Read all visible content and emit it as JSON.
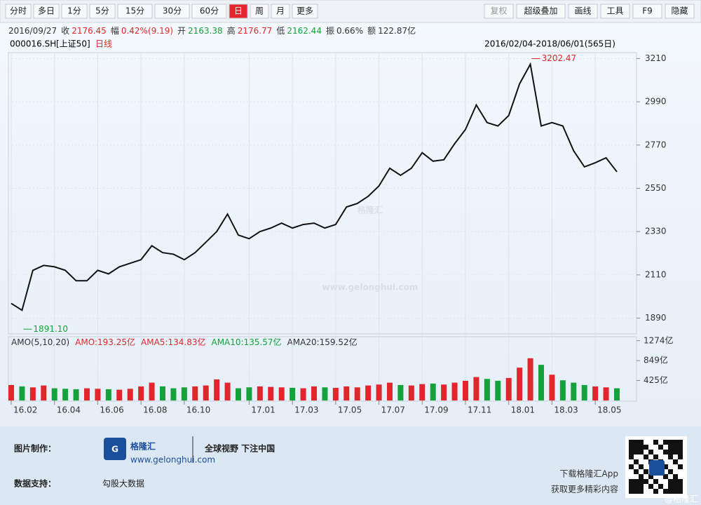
{
  "toolbar": {
    "left": [
      "分时",
      "多日",
      "1分",
      "5分",
      "15分",
      "30分",
      "60分",
      "日",
      "周",
      "月",
      "更多"
    ],
    "selected": 7,
    "right": [
      "复权",
      "超级叠加",
      "画线",
      "工具",
      "F9",
      "隐藏"
    ]
  },
  "quote": [
    {
      "text": "2016/09/27",
      "color": "#333333"
    },
    {
      "text": "收",
      "color": "#333333"
    },
    {
      "text": "2176.45",
      "color": "#e3262b"
    },
    {
      "text": "幅",
      "color": "#333333"
    },
    {
      "text": "0.42%(9.19)",
      "color": "#e3262b"
    },
    {
      "text": "开",
      "color": "#333333"
    },
    {
      "text": "2163.38",
      "color": "#16a23a"
    },
    {
      "text": "高",
      "color": "#333333"
    },
    {
      "text": "2176.77",
      "color": "#e3262b"
    },
    {
      "text": "低",
      "color": "#333333"
    },
    {
      "text": "2162.44",
      "color": "#16a23a"
    },
    {
      "text": "振",
      "color": "#333333"
    },
    {
      "text": "0.66%",
      "color": "#333333"
    },
    {
      "text": "额",
      "color": "#333333"
    },
    {
      "text": "122.87亿",
      "color": "#333333"
    }
  ],
  "code": {
    "symbol": "000016.SH",
    "index": "[上证50]",
    "period": "日线",
    "range": "2016/02/04-2018/06/01(565日)"
  },
  "watermark": {
    "logo": "格隆汇",
    "url": "www.gelonghui.com"
  },
  "chart_data": [
    {
      "type": "line",
      "series": [
        {
          "name": "000016.SH",
          "color": "#111111",
          "values": [
            1965,
            1930,
            2133,
            2158,
            2151,
            2133,
            2080,
            2080,
            2133,
            2115,
            2151,
            2169,
            2187,
            2258,
            2223,
            2215,
            2187,
            2223,
            2276,
            2330,
            2419,
            2312,
            2294,
            2330,
            2348,
            2373,
            2348,
            2366,
            2373,
            2348,
            2366,
            2455,
            2473,
            2509,
            2562,
            2652,
            2616,
            2652,
            2731,
            2688,
            2695,
            2777,
            2849,
            2974,
            2884,
            2867,
            2920,
            3081,
            3181,
            2867,
            2884,
            2867,
            2741,
            2659,
            2680,
            2705,
            2634
          ]
        }
      ],
      "xlim": [
        0,
        56
      ],
      "ylim": [
        1810,
        3240
      ],
      "yticks": [
        1890,
        2110,
        2330,
        2550,
        2770,
        2990,
        3210
      ],
      "grid": true,
      "annotations": [
        {
          "x": 48,
          "value": 3202.47,
          "color": "#e3262b"
        },
        {
          "x": 1,
          "value": 1891.1,
          "label": "1891.10",
          "color": "#16a23a"
        }
      ]
    },
    {
      "type": "bar",
      "legend": [
        {
          "label": "AMO(5,10,20)",
          "color": "#333333"
        },
        {
          "label": "AMO:193.25亿",
          "color": "#e3262b"
        },
        {
          "label": "AMA5:134.83亿",
          "color": "#e3262b"
        },
        {
          "label": "AMA10:135.57亿",
          "color": "#16a23a"
        },
        {
          "label": "AMA20:159.52亿",
          "color": "#333333"
        }
      ],
      "values": [
        330,
        300,
        280,
        320,
        260,
        250,
        240,
        260,
        250,
        240,
        230,
        250,
        300,
        380,
        300,
        260,
        280,
        300,
        320,
        450,
        380,
        260,
        280,
        300,
        290,
        280,
        270,
        260,
        300,
        280,
        270,
        300,
        280,
        320,
        340,
        380,
        330,
        320,
        350,
        360,
        340,
        380,
        420,
        500,
        460,
        420,
        480,
        700,
        900,
        760,
        550,
        430,
        380,
        330,
        300,
        280,
        260
      ],
      "colors": [
        "#e3262b",
        "#16a23a",
        "#e3262b",
        "#e3262b",
        "#16a23a",
        "#16a23a",
        "#16a23a",
        "#e3262b",
        "#e3262b",
        "#16a23a",
        "#e3262b",
        "#e3262b",
        "#e3262b",
        "#e3262b",
        "#16a23a",
        "#16a23a",
        "#16a23a",
        "#e3262b",
        "#e3262b",
        "#e3262b",
        "#e3262b",
        "#16a23a",
        "#16a23a",
        "#e3262b",
        "#e3262b",
        "#e3262b",
        "#16a23a",
        "#e3262b",
        "#e3262b",
        "#16a23a",
        "#e3262b",
        "#e3262b",
        "#e3262b",
        "#e3262b",
        "#e3262b",
        "#e3262b",
        "#16a23a",
        "#e3262b",
        "#e3262b",
        "#16a23a",
        "#e3262b",
        "#e3262b",
        "#e3262b",
        "#e3262b",
        "#16a23a",
        "#16a23a",
        "#e3262b",
        "#e3262b",
        "#e3262b",
        "#16a23a",
        "#e3262b",
        "#16a23a",
        "#16a23a",
        "#16a23a",
        "#e3262b",
        "#e3262b",
        "#16a23a"
      ],
      "xlim": [
        0,
        56
      ],
      "ylim": [
        0,
        1360
      ],
      "yticks": [
        {
          "value": 425,
          "label": "425亿"
        },
        {
          "value": 849,
          "label": "849亿"
        },
        {
          "value": 1274,
          "label": "1274亿"
        }
      ],
      "xticks": [
        {
          "value": 0,
          "label": "16.02"
        },
        {
          "value": 4,
          "label": "16.04"
        },
        {
          "value": 8,
          "label": "16.06"
        },
        {
          "value": 12,
          "label": "16.08"
        },
        {
          "value": 16,
          "label": "16.10"
        },
        {
          "value": 22,
          "label": "17.01"
        },
        {
          "value": 26,
          "label": "17.03"
        },
        {
          "value": 30,
          "label": "17.05"
        },
        {
          "value": 34,
          "label": "17.07"
        },
        {
          "value": 38,
          "label": "17.09"
        },
        {
          "value": 42,
          "label": "17.11"
        },
        {
          "value": 46,
          "label": "18.01"
        },
        {
          "value": 50,
          "label": "18.03"
        },
        {
          "value": 54,
          "label": "18.05"
        }
      ]
    }
  ],
  "footer": {
    "made_label": "图片制作：",
    "logo": "格隆汇",
    "logo_url": "www.gelonghui.com",
    "slogan": "全球视野 下注中国",
    "data_label": "数据支持：",
    "data_source": "勾股大数据",
    "app1": "下载格隆汇App",
    "app2": "获取更多精彩内容",
    "handle": "@格隆汇"
  }
}
